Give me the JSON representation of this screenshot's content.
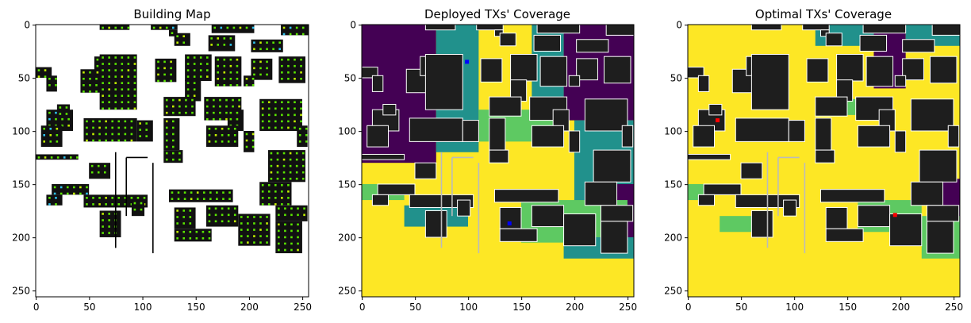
{
  "chart_data": [
    {
      "type": "heatmap",
      "title": "Building Map",
      "xlim": [
        0,
        255
      ],
      "ylim": [
        255,
        0
      ],
      "xticks": [
        0,
        50,
        100,
        150,
        200,
        250
      ],
      "yticks": [
        0,
        50,
        100,
        150,
        200,
        250
      ],
      "background": "#ffffff",
      "building_color": "#111111",
      "sensor_colors": [
        "#5ae600",
        "#c2f000",
        "#2fc3ee"
      ],
      "tx_points": []
    },
    {
      "type": "heatmap",
      "title": "Deployed TXs' Coverage",
      "xlim": [
        0,
        255
      ],
      "ylim": [
        255,
        0
      ],
      "xticks": [
        0,
        50,
        100,
        150,
        200,
        250
      ],
      "yticks": [
        0,
        50,
        100,
        150,
        200,
        250
      ],
      "colors": {
        "high": "#fde725",
        "mid_high": "#5ec962",
        "mid": "#21918c",
        "low": "#440154",
        "building": "#1e1e1e"
      },
      "tx_points": [
        {
          "x": 99,
          "y": 35,
          "color": "#0000ff"
        },
        {
          "x": 139,
          "y": 187,
          "color": "#0000ff"
        }
      ]
    },
    {
      "type": "heatmap",
      "title": "Optimal TXs' Coverage",
      "xlim": [
        0,
        255
      ],
      "ylim": [
        255,
        0
      ],
      "xticks": [
        0,
        50,
        100,
        150,
        200,
        250
      ],
      "yticks": [
        0,
        50,
        100,
        150,
        200,
        250
      ],
      "colors": {
        "high": "#fde725",
        "mid_high": "#5ec962",
        "mid": "#21918c",
        "low": "#440154",
        "building": "#1e1e1e"
      },
      "tx_points": [
        {
          "x": 28,
          "y": 90,
          "color": "#ff0000"
        },
        {
          "x": 195,
          "y": 179,
          "color": "#ff0000"
        }
      ]
    }
  ]
}
